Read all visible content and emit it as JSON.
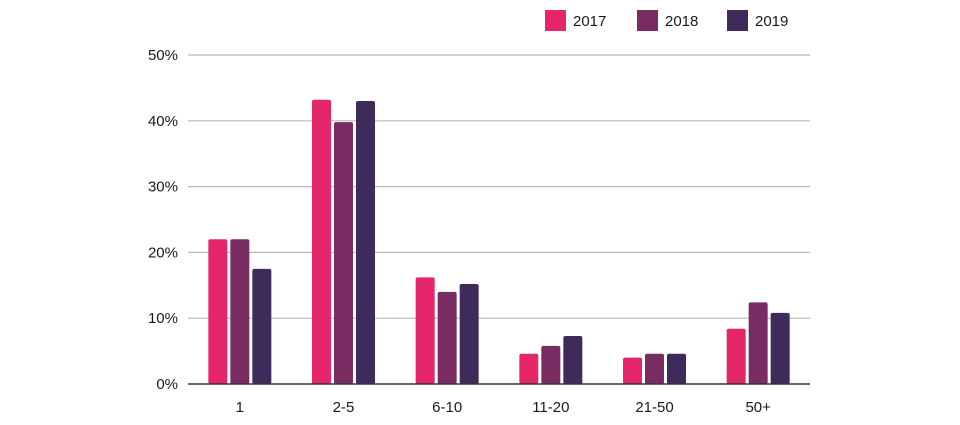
{
  "chart_data": {
    "type": "bar",
    "title": "",
    "xlabel": "",
    "ylabel": "",
    "categories": [
      "1",
      "2-5",
      "6-10",
      "11-20",
      "21-50",
      "50+"
    ],
    "series": [
      {
        "name": "2017",
        "color": "#e5266b",
        "values": [
          22,
          43.2,
          16.2,
          4.6,
          4.0,
          8.4
        ]
      },
      {
        "name": "2018",
        "color": "#782c62",
        "values": [
          22,
          39.8,
          14.0,
          5.8,
          4.6,
          12.4
        ]
      },
      {
        "name": "2019",
        "color": "#3f2a5c",
        "values": [
          17.5,
          43.0,
          15.2,
          7.3,
          4.6,
          10.8
        ]
      }
    ],
    "ylim": [
      0,
      50
    ],
    "yticks": [
      0,
      10,
      20,
      30,
      40,
      50
    ],
    "ytick_labels": [
      "0%",
      "10%",
      "20%",
      "30%",
      "40%",
      "50%"
    ],
    "grid": true,
    "legend_position": "top-right"
  }
}
